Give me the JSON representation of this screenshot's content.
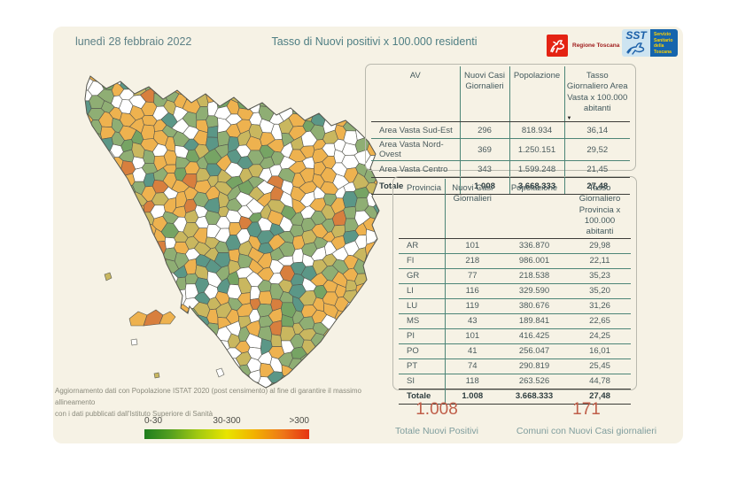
{
  "header": {
    "date": "lunedì 28 febbraio 2022",
    "title": "Tasso di Nuovi positivi x 100.000 residenti",
    "logos": {
      "regione": "Regione Toscana",
      "sst_abbr": "SST",
      "sst_text": "Servizio Sanitario della Toscana"
    }
  },
  "chart_data": [
    {
      "type": "choropleth",
      "title": "Tasso di Nuovi positivi x 100.000 residenti",
      "region": "Toscana",
      "legend": {
        "labels": [
          "0-30",
          "30-300",
          ">300"
        ],
        "gradient": [
          "#1e7d1e",
          "#e8e400",
          "#e63311"
        ]
      },
      "palette": [
        {
          "color": "#eeb24f",
          "weight": 34
        },
        {
          "color": "#ffffff",
          "weight": 22
        },
        {
          "color": "#8fae74",
          "weight": 14
        },
        {
          "color": "#c9b75f",
          "weight": 12
        },
        {
          "color": "#5b9787",
          "weight": 9
        },
        {
          "color": "#76a464",
          "weight": 5
        },
        {
          "color": "#d87f3e",
          "weight": 4
        }
      ],
      "border_color": "#55564e"
    },
    {
      "type": "table",
      "name": "area-vasta",
      "columns": [
        "AV",
        "Nuovi Casi Giornalieri",
        "Popolazione",
        "Tasso Giornaliero Area Vasta x 100.000 abitanti"
      ],
      "sort_col": 3,
      "rows": [
        [
          "Area Vasta Sud-Est",
          "296",
          "818.934",
          "36,14"
        ],
        [
          "Area Vasta Nord-Ovest",
          "369",
          "1.250.151",
          "29,52"
        ],
        [
          "Area Vasta Centro",
          "343",
          "1.599.248",
          "21,45"
        ]
      ],
      "total": [
        "Totale",
        "1.008",
        "3.668.333",
        "27,48"
      ]
    },
    {
      "type": "table",
      "name": "provincia",
      "columns": [
        "Provincia",
        "Nuovi Casi Giornalieri",
        "Popolazione",
        "Tasso Giornaliero Provincia x 100.000 abitanti"
      ],
      "rows": [
        [
          "AR",
          "101",
          "336.870",
          "29,98"
        ],
        [
          "FI",
          "218",
          "986.001",
          "22,11"
        ],
        [
          "GR",
          "77",
          "218.538",
          "35,23"
        ],
        [
          "LI",
          "116",
          "329.590",
          "35,20"
        ],
        [
          "LU",
          "119",
          "380.676",
          "31,26"
        ],
        [
          "MS",
          "43",
          "189.841",
          "22,65"
        ],
        [
          "PI",
          "101",
          "416.425",
          "24,25"
        ],
        [
          "PO",
          "41",
          "256.047",
          "16,01"
        ],
        [
          "PT",
          "74",
          "290.819",
          "25,45"
        ],
        [
          "SI",
          "118",
          "263.526",
          "44,78"
        ]
      ],
      "total": [
        "Totale",
        "1.008",
        "3.668.333",
        "27,48"
      ]
    },
    {
      "type": "kpi",
      "value": "1.008",
      "label": "Totale Nuovi Positivi"
    },
    {
      "type": "kpi",
      "value": "171",
      "label": "Comuni con Nuovi Casi giornalieri"
    }
  ],
  "footnote": {
    "line1": "Aggiornamento dati con Popolazione ISTAT 2020 (post censimento) al fine di garantire il massimo allineamento",
    "line2": "con i dati pubblicati dall'Istituto Superiore di Sanità"
  }
}
